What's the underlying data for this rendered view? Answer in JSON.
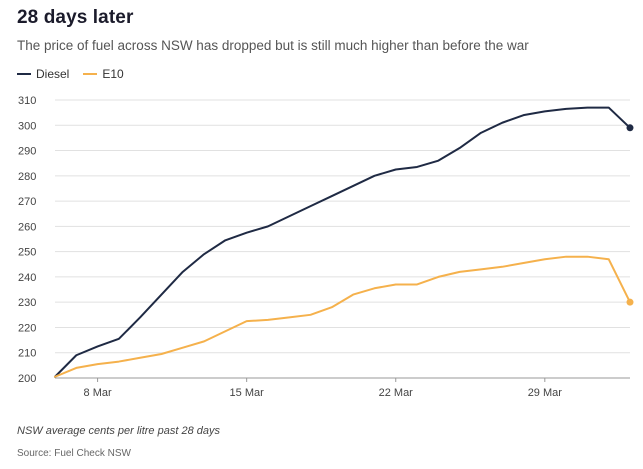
{
  "title": "28 days later",
  "subtitle": "The price of fuel across NSW has dropped but is still much higher than before the war",
  "note": "NSW average cents per litre past 28 days",
  "source": "Source: Fuel Check NSW",
  "legend": [
    {
      "name": "Diesel",
      "color": "#1f2a44"
    },
    {
      "name": "E10",
      "color": "#f5b14c"
    }
  ],
  "chart_data": {
    "type": "line",
    "title": "28 days later",
    "xlabel": "",
    "ylabel": "",
    "x_days": [
      6,
      7,
      8,
      9,
      10,
      11,
      12,
      13,
      14,
      15,
      16,
      17,
      18,
      19,
      20,
      21,
      22,
      23,
      24,
      25,
      26,
      27,
      28,
      29,
      30,
      31,
      32,
      33
    ],
    "xlim": [
      6,
      33
    ],
    "x_ticks": [
      {
        "day": 8,
        "label": "8 Mar"
      },
      {
        "day": 15,
        "label": "15 Mar"
      },
      {
        "day": 22,
        "label": "22 Mar"
      },
      {
        "day": 29,
        "label": "29 Mar"
      }
    ],
    "ylim": [
      200,
      310
    ],
    "y_ticks": [
      200,
      210,
      220,
      230,
      240,
      250,
      260,
      270,
      280,
      290,
      300,
      310
    ],
    "grid": true,
    "series": [
      {
        "name": "Diesel",
        "color": "#1f2a44",
        "values": [
          200.5,
          209,
          212.5,
          215.5,
          224,
          233,
          242,
          249,
          254.5,
          257.5,
          260,
          264,
          268,
          272,
          276,
          280,
          282.5,
          283.5,
          286,
          291,
          297,
          301,
          304,
          305.5,
          306.5,
          307,
          307,
          299
        ]
      },
      {
        "name": "E10",
        "color": "#f5b14c",
        "values": [
          200.5,
          204,
          205.5,
          206.5,
          208,
          209.5,
          212,
          214.5,
          218.5,
          222.5,
          223,
          224,
          225,
          228,
          233,
          235.5,
          237,
          237,
          240,
          242,
          243,
          244,
          245.5,
          247,
          248,
          248,
          247,
          230
        ]
      }
    ]
  }
}
